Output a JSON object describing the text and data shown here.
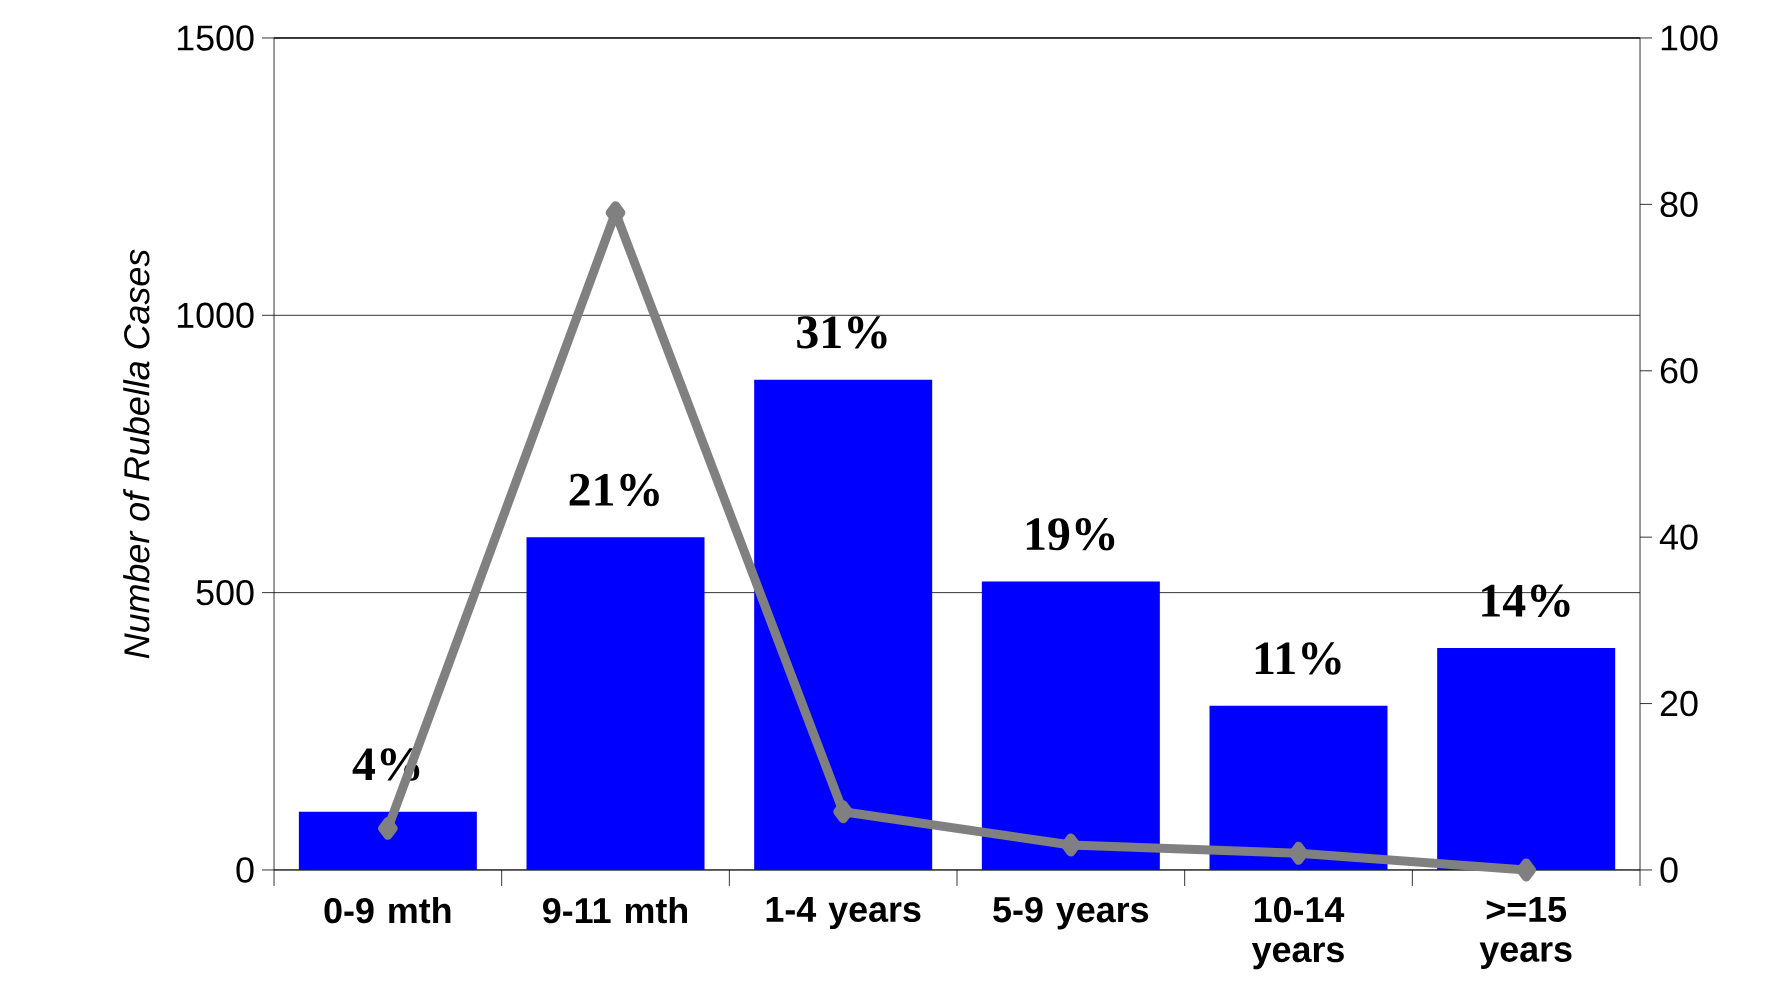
{
  "chart_data": {
    "type": "bar",
    "categories": [
      "0-9 mth",
      "9-11 mth",
      "1-4 years",
      "5-9 years",
      "10-14 years",
      ">=15 years"
    ],
    "ylabel": "Number of Rubella Cases",
    "ylim": [
      0,
      1500
    ],
    "yticks": [
      0,
      500,
      1000,
      1500
    ],
    "y2lim": [
      0,
      100
    ],
    "y2ticks": [
      0,
      20,
      40,
      60,
      80,
      100
    ],
    "grid": "y",
    "annotations": [
      {
        "text": "4%",
        "x": "0-9 mth",
        "y": 105
      },
      {
        "text": "21%",
        "x": "9-11 mth",
        "y": 600
      },
      {
        "text": "31%",
        "x": "1-4 years",
        "y": 884
      },
      {
        "text": "19%",
        "x": "5-9 years",
        "y": 520
      },
      {
        "text": "11%",
        "x": "10-14 years",
        "y": 296
      },
      {
        "text": "14%",
        "x": ">=15 years",
        "y": 400
      }
    ],
    "series": [
      {
        "color": "#0000ff",
        "values": [
          105,
          600,
          884,
          520,
          296,
          400
        ]
      },
      {
        "type": "line",
        "axis": "y2",
        "color": "#808080",
        "marker": "diamond",
        "values": [
          5,
          79,
          7,
          3,
          2,
          0
        ]
      }
    ]
  }
}
